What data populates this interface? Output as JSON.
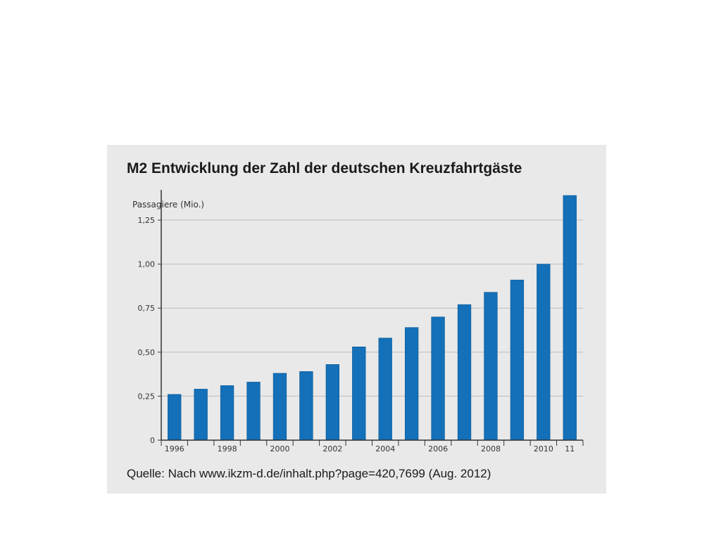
{
  "chart_data": {
    "type": "bar",
    "title": "M2 Entwicklung der Zahl der deutschen Kreuzfahrtgäste",
    "ylabel": "Passagiere (Mio.)",
    "xlabel": "",
    "categories": [
      "1996",
      "1997",
      "1998",
      "1999",
      "2000",
      "2001",
      "2002",
      "2003",
      "2004",
      "2005",
      "2006",
      "2007",
      "2008",
      "2009",
      "2010",
      "2011"
    ],
    "x_tick_labels": [
      "1996",
      "",
      "1998",
      "",
      "2000",
      "",
      "2002",
      "",
      "2004",
      "",
      "2006",
      "",
      "2008",
      "",
      "2010",
      "11"
    ],
    "values": [
      0.26,
      0.29,
      0.31,
      0.33,
      0.38,
      0.39,
      0.43,
      0.53,
      0.58,
      0.64,
      0.7,
      0.77,
      0.84,
      0.91,
      1.0,
      1.39
    ],
    "ylim": [
      0,
      1.39
    ],
    "y_ticks": [
      0,
      0.25,
      0.5,
      0.75,
      1.0,
      1.25
    ],
    "y_tick_labels": [
      "0",
      "0,25",
      "0,50",
      "0,75",
      "1,00",
      "1,25"
    ],
    "grid": true,
    "bar_color": "#1470b8",
    "source": "Quelle: Nach www.ikzm-d.de/inhalt.php?page=420,7699 (Aug. 2012)"
  }
}
